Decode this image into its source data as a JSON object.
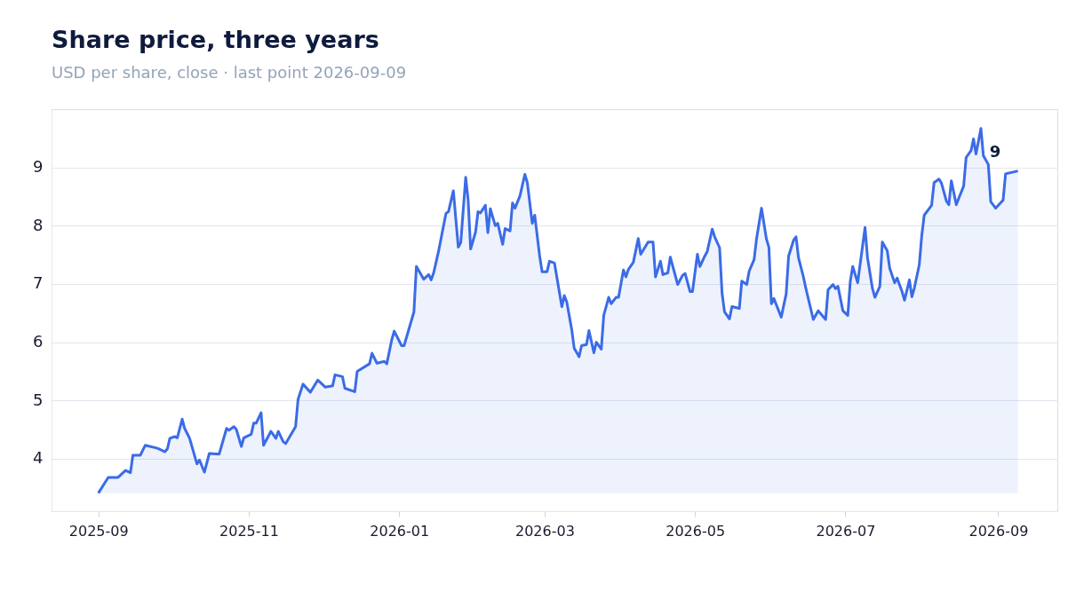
{
  "chart_data": {
    "type": "area",
    "title": "Share price, three years",
    "subtitle": "USD per share, close · last point 2026-09-09",
    "x": [
      "2025-09-01",
      "2025-09-05",
      "2025-09-09",
      "2025-09-12",
      "2025-09-14",
      "2025-09-15",
      "2025-09-18",
      "2025-09-20",
      "2025-09-25",
      "2025-09-28",
      "2025-09-29",
      "2025-09-30",
      "2025-10-02",
      "2025-10-03",
      "2025-10-05",
      "2025-10-06",
      "2025-10-08",
      "2025-10-11",
      "2025-10-12",
      "2025-10-14",
      "2025-10-16",
      "2025-10-20",
      "2025-10-23",
      "2025-10-24",
      "2025-10-26",
      "2025-10-27",
      "2025-10-29",
      "2025-10-30",
      "2025-11-02",
      "2025-11-03",
      "2025-11-04",
      "2025-11-06",
      "2025-11-07",
      "2025-11-10",
      "2025-11-12",
      "2025-11-13",
      "2025-11-15",
      "2025-11-16",
      "2025-11-20",
      "2025-11-21",
      "2025-11-23",
      "2025-11-26",
      "2025-11-29",
      "2025-11-30",
      "2025-12-02",
      "2025-12-05",
      "2025-12-06",
      "2025-12-09",
      "2025-12-10",
      "2025-12-14",
      "2025-12-15",
      "2025-12-20",
      "2025-12-21",
      "2025-12-23",
      "2025-12-26",
      "2025-12-27",
      "2025-12-29",
      "2025-12-30",
      "2026-01-02",
      "2026-01-03",
      "2026-01-05",
      "2026-01-07",
      "2026-01-08",
      "2026-01-11",
      "2026-01-13",
      "2026-01-14",
      "2026-01-15",
      "2026-01-17",
      "2026-01-18",
      "2026-01-20",
      "2026-01-21",
      "2026-01-23",
      "2026-01-25",
      "2026-01-26",
      "2026-01-28",
      "2026-01-29",
      "2026-01-30",
      "2026-02-01",
      "2026-02-02",
      "2026-02-03",
      "2026-02-05",
      "2026-02-06",
      "2026-02-07",
      "2026-02-09",
      "2026-02-10",
      "2026-02-12",
      "2026-02-13",
      "2026-02-15",
      "2026-02-16",
      "2026-02-17",
      "2026-02-19",
      "2026-02-21",
      "2026-02-22",
      "2026-02-24",
      "2026-02-25",
      "2026-02-27",
      "2026-02-28",
      "2026-03-02",
      "2026-03-03",
      "2026-03-05",
      "2026-03-08",
      "2026-03-09",
      "2026-03-10",
      "2026-03-12",
      "2026-03-13",
      "2026-03-15",
      "2026-03-16",
      "2026-03-18",
      "2026-03-19",
      "2026-03-21",
      "2026-03-22",
      "2026-03-24",
      "2026-03-25",
      "2026-03-27",
      "2026-03-28",
      "2026-03-30",
      "2026-03-31",
      "2026-04-02",
      "2026-04-03",
      "2026-04-04",
      "2026-04-06",
      "2026-04-08",
      "2026-04-09",
      "2026-04-12",
      "2026-04-14",
      "2026-04-15",
      "2026-04-17",
      "2026-04-18",
      "2026-04-20",
      "2026-04-21",
      "2026-04-24",
      "2026-04-26",
      "2026-04-27",
      "2026-04-29",
      "2026-04-30",
      "2026-05-02",
      "2026-05-03",
      "2026-05-05",
      "2026-05-06",
      "2026-05-08",
      "2026-05-09",
      "2026-05-11",
      "2026-05-12",
      "2026-05-13",
      "2026-05-15",
      "2026-05-16",
      "2026-05-19",
      "2026-05-20",
      "2026-05-22",
      "2026-05-23",
      "2026-05-25",
      "2026-05-26",
      "2026-05-28",
      "2026-05-30",
      "2026-05-31",
      "2026-06-01",
      "2026-06-02",
      "2026-06-05",
      "2026-06-07",
      "2026-06-08",
      "2026-06-10",
      "2026-06-11",
      "2026-06-12",
      "2026-06-14",
      "2026-06-15",
      "2026-06-18",
      "2026-06-20",
      "2026-06-23",
      "2026-06-24",
      "2026-06-26",
      "2026-06-27",
      "2026-06-28",
      "2026-06-30",
      "2026-07-02",
      "2026-07-03",
      "2026-07-04",
      "2026-07-06",
      "2026-07-09",
      "2026-07-10",
      "2026-07-12",
      "2026-07-13",
      "2026-07-15",
      "2026-07-16",
      "2026-07-18",
      "2026-07-19",
      "2026-07-21",
      "2026-07-22",
      "2026-07-24",
      "2026-07-25",
      "2026-07-27",
      "2026-07-28",
      "2026-07-29",
      "2026-07-31",
      "2026-08-01",
      "2026-08-02",
      "2026-08-05",
      "2026-08-06",
      "2026-08-08",
      "2026-08-09",
      "2026-08-11",
      "2026-08-12",
      "2026-08-13",
      "2026-08-15",
      "2026-08-16",
      "2026-08-18",
      "2026-08-19",
      "2026-08-21",
      "2026-08-22",
      "2026-08-23",
      "2026-08-25",
      "2026-08-26",
      "2026-08-28",
      "2026-08-29",
      "2026-08-31",
      "2026-09-03",
      "2026-09-04",
      "2026-09-09"
    ],
    "series": [
      {
        "color": "#3b6be6",
        "values": [
          3.41,
          3.68,
          3.68,
          3.8,
          3.76,
          4.06,
          4.06,
          4.23,
          4.18,
          4.12,
          4.17,
          4.35,
          4.38,
          4.36,
          4.68,
          4.52,
          4.35,
          3.91,
          3.98,
          3.77,
          4.09,
          4.08,
          4.52,
          4.49,
          4.55,
          4.5,
          4.21,
          4.36,
          4.42,
          4.61,
          4.61,
          4.79,
          4.23,
          4.47,
          4.35,
          4.47,
          4.29,
          4.26,
          4.55,
          5.02,
          5.28,
          5.14,
          5.35,
          5.31,
          5.23,
          5.25,
          5.44,
          5.41,
          5.21,
          5.15,
          5.5,
          5.63,
          5.81,
          5.64,
          5.67,
          5.63,
          6.04,
          6.19,
          5.94,
          5.94,
          6.23,
          6.52,
          7.3,
          7.08,
          7.16,
          7.07,
          7.19,
          7.56,
          7.78,
          8.21,
          8.24,
          8.6,
          7.63,
          7.71,
          8.83,
          8.44,
          7.6,
          7.89,
          8.24,
          8.22,
          8.35,
          7.88,
          8.29,
          8.0,
          8.04,
          7.68,
          7.95,
          7.91,
          8.39,
          8.3,
          8.51,
          8.88,
          8.74,
          8.04,
          8.18,
          7.48,
          7.21,
          7.21,
          7.39,
          7.36,
          6.61,
          6.8,
          6.69,
          6.22,
          5.9,
          5.75,
          5.94,
          5.96,
          6.2,
          5.82,
          6.0,
          5.88,
          6.46,
          6.77,
          6.66,
          6.77,
          6.77,
          7.24,
          7.12,
          7.25,
          7.37,
          7.78,
          7.51,
          7.72,
          7.72,
          7.12,
          7.39,
          7.16,
          7.19,
          7.46,
          6.99,
          7.15,
          7.18,
          6.87,
          6.87,
          7.51,
          7.3,
          7.48,
          7.56,
          7.94,
          7.81,
          7.62,
          6.84,
          6.52,
          6.4,
          6.61,
          6.58,
          7.05,
          6.99,
          7.22,
          7.42,
          7.78,
          8.3,
          7.77,
          7.63,
          6.66,
          6.75,
          6.43,
          6.83,
          7.48,
          7.75,
          7.81,
          7.45,
          7.12,
          6.92,
          6.39,
          6.54,
          6.39,
          6.9,
          6.99,
          6.92,
          6.96,
          6.54,
          6.46,
          7.04,
          7.3,
          7.02,
          7.97,
          7.45,
          6.92,
          6.77,
          6.96,
          7.72,
          7.57,
          7.27,
          7.02,
          7.1,
          6.87,
          6.72,
          7.07,
          6.78,
          6.93,
          7.33,
          7.83,
          8.18,
          8.35,
          8.74,
          8.8,
          8.73,
          8.42,
          8.36,
          8.77,
          8.36,
          8.47,
          8.68,
          9.17,
          9.29,
          9.49,
          9.23,
          9.67,
          9.2,
          9.05,
          8.41,
          8.3,
          8.44,
          8.89,
          8.94
        ]
      }
    ],
    "xlim": [
      "2025-08-13",
      "2026-09-25"
    ],
    "ylim": [
      3.1,
      10
    ],
    "xticks": [
      "2025-09",
      "2025-11",
      "2026-01",
      "2026-03",
      "2026-05",
      "2026-07",
      "2026-09"
    ],
    "yticks": [
      4,
      5,
      6,
      7,
      8,
      9
    ],
    "grid": "y",
    "annotations": [
      "9"
    ]
  }
}
